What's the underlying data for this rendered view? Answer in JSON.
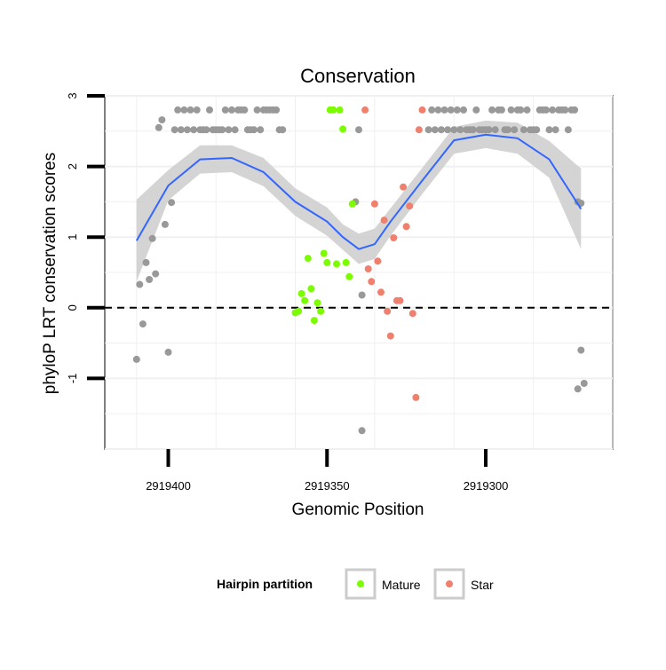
{
  "chart_data": {
    "type": "scatter",
    "title": "Conservation",
    "xlabel": "Genomic Position",
    "ylabel": "phyloP LRT conservation scores",
    "x_reversed": true,
    "xlim": [
      2919260,
      2919420
    ],
    "ylim": [
      -2.0,
      3.0
    ],
    "x_ticks": [
      2919400,
      2919350,
      2919300
    ],
    "x_tick_labels": [
      "2919400",
      "2919350",
      "2919300"
    ],
    "y_ticks": [
      -1,
      0,
      1,
      2,
      3
    ],
    "y_tick_labels": [
      "-1",
      "0",
      "1",
      "2",
      "3"
    ],
    "grid": true,
    "reference_line": {
      "y": 0,
      "style": "dashed"
    },
    "colors": {
      "other": "#999999",
      "mature": "#7cfc00",
      "star": "#f0806e",
      "smooth": "#3366ff",
      "band": "#cccccc"
    },
    "legend": {
      "title": "Hairpin partition",
      "position": "bottom",
      "entries": [
        {
          "label": "Mature",
          "color": "#7cfc00"
        },
        {
          "label": "Star",
          "color": "#f0806e"
        }
      ]
    },
    "series": [
      {
        "key": "other",
        "points": [
          [
            2919410,
            -0.73
          ],
          [
            2919409,
            0.33
          ],
          [
            2919408,
            -0.23
          ],
          [
            2919407,
            0.64
          ],
          [
            2919406,
            0.4
          ],
          [
            2919405,
            0.98
          ],
          [
            2919404,
            0.48
          ],
          [
            2919403,
            2.55
          ],
          [
            2919402,
            2.66
          ],
          [
            2919401,
            1.18
          ],
          [
            2919400,
            -0.63
          ],
          [
            2919399,
            1.49
          ],
          [
            2919398,
            2.52
          ],
          [
            2919397,
            2.8
          ],
          [
            2919396,
            2.52
          ],
          [
            2919395,
            2.8
          ],
          [
            2919394,
            2.52
          ],
          [
            2919393,
            2.8
          ],
          [
            2919392,
            2.52
          ],
          [
            2919391,
            2.8
          ],
          [
            2919390,
            2.52
          ],
          [
            2919389,
            2.52
          ],
          [
            2919388,
            2.52
          ],
          [
            2919387,
            2.8
          ],
          [
            2919386,
            2.52
          ],
          [
            2919385,
            2.52
          ],
          [
            2919384,
            2.52
          ],
          [
            2919383,
            2.52
          ],
          [
            2919382,
            2.8
          ],
          [
            2919381,
            2.52
          ],
          [
            2919380,
            2.8
          ],
          [
            2919379,
            2.52
          ],
          [
            2919378,
            2.8
          ],
          [
            2919377,
            2.8
          ],
          [
            2919376,
            2.8
          ],
          [
            2919375,
            2.52
          ],
          [
            2919374,
            2.52
          ],
          [
            2919373,
            2.52
          ],
          [
            2919372,
            2.8
          ],
          [
            2919371,
            2.52
          ],
          [
            2919370,
            2.8
          ],
          [
            2919369,
            2.8
          ],
          [
            2919368,
            2.8
          ],
          [
            2919367,
            2.8
          ],
          [
            2919366,
            2.8
          ],
          [
            2919365,
            2.52
          ],
          [
            2919364,
            2.52
          ],
          [
            2919341,
            1.5
          ],
          [
            2919340,
            2.52
          ],
          [
            2919339,
            0.18
          ],
          [
            2919339,
            -1.74
          ],
          [
            2919318,
            2.52
          ],
          [
            2919317,
            2.8
          ],
          [
            2919316,
            2.52
          ],
          [
            2919315,
            2.8
          ],
          [
            2919314,
            2.52
          ],
          [
            2919313,
            2.8
          ],
          [
            2919312,
            2.52
          ],
          [
            2919311,
            2.8
          ],
          [
            2919310,
            2.52
          ],
          [
            2919309,
            2.8
          ],
          [
            2919308,
            2.52
          ],
          [
            2919307,
            2.8
          ],
          [
            2919306,
            2.52
          ],
          [
            2919305,
            2.52
          ],
          [
            2919304,
            2.52
          ],
          [
            2919303,
            2.8
          ],
          [
            2919302,
            2.52
          ],
          [
            2919301,
            2.52
          ],
          [
            2919300,
            2.52
          ],
          [
            2919299,
            2.52
          ],
          [
            2919298,
            2.8
          ],
          [
            2919297,
            2.52
          ],
          [
            2919296,
            2.8
          ],
          [
            2919295,
            2.8
          ],
          [
            2919294,
            2.52
          ],
          [
            2919293,
            2.52
          ],
          [
            2919292,
            2.8
          ],
          [
            2919291,
            2.52
          ],
          [
            2919290,
            2.8
          ],
          [
            2919289,
            2.8
          ],
          [
            2919288,
            2.52
          ],
          [
            2919287,
            2.8
          ],
          [
            2919286,
            2.52
          ],
          [
            2919285,
            2.52
          ],
          [
            2919284,
            2.52
          ],
          [
            2919283,
            2.8
          ],
          [
            2919282,
            2.8
          ],
          [
            2919281,
            2.8
          ],
          [
            2919280,
            2.52
          ],
          [
            2919279,
            2.8
          ],
          [
            2919278,
            2.52
          ],
          [
            2919277,
            2.8
          ],
          [
            2919276,
            2.8
          ],
          [
            2919275,
            2.8
          ],
          [
            2919274,
            2.52
          ],
          [
            2919273,
            2.8
          ],
          [
            2919272,
            2.8
          ],
          [
            2919271,
            1.5
          ],
          [
            2919271,
            -1.15
          ],
          [
            2919270,
            1.48
          ],
          [
            2919270,
            -0.6
          ],
          [
            2919269,
            -1.07
          ]
        ]
      },
      {
        "key": "mature",
        "name": "Mature",
        "points": [
          [
            2919360,
            -0.07
          ],
          [
            2919359,
            -0.05
          ],
          [
            2919358,
            0.2
          ],
          [
            2919357,
            0.1
          ],
          [
            2919356,
            0.7
          ],
          [
            2919355,
            0.27
          ],
          [
            2919354,
            -0.18
          ],
          [
            2919353,
            0.07
          ],
          [
            2919352,
            -0.05
          ],
          [
            2919351,
            0.77
          ],
          [
            2919350,
            0.64
          ],
          [
            2919349,
            2.8
          ],
          [
            2919348,
            2.8
          ],
          [
            2919347,
            0.62
          ],
          [
            2919346,
            2.8
          ],
          [
            2919345,
            2.53
          ],
          [
            2919344,
            0.64
          ],
          [
            2919343,
            0.44
          ],
          [
            2919342,
            1.47
          ]
        ]
      },
      {
        "key": "star",
        "name": "Star",
        "points": [
          [
            2919338,
            2.8
          ],
          [
            2919337,
            0.55
          ],
          [
            2919336,
            0.37
          ],
          [
            2919335,
            1.47
          ],
          [
            2919334,
            0.66
          ],
          [
            2919333,
            0.22
          ],
          [
            2919332,
            1.24
          ],
          [
            2919331,
            -0.05
          ],
          [
            2919330,
            -0.4
          ],
          [
            2919329,
            0.99
          ],
          [
            2919328,
            0.1
          ],
          [
            2919327,
            0.1
          ],
          [
            2919326,
            1.71
          ],
          [
            2919325,
            1.15
          ],
          [
            2919324,
            1.44
          ],
          [
            2919323,
            -0.08
          ],
          [
            2919322,
            -1.27
          ],
          [
            2919321,
            2.52
          ],
          [
            2919320,
            2.8
          ]
        ]
      }
    ],
    "smooth": {
      "x": [
        2919410,
        2919400,
        2919390,
        2919380,
        2919370,
        2919360,
        2919350,
        2919345,
        2919340,
        2919335,
        2919330,
        2919320,
        2919310,
        2919300,
        2919290,
        2919280,
        2919270
      ],
      "y": [
        0.95,
        1.73,
        2.1,
        2.12,
        1.92,
        1.5,
        1.22,
        1.0,
        0.83,
        0.9,
        1.22,
        1.8,
        2.37,
        2.45,
        2.4,
        2.1,
        1.4
      ],
      "upper": [
        1.53,
        1.95,
        2.3,
        2.3,
        2.12,
        1.69,
        1.42,
        1.18,
        1.05,
        1.12,
        1.41,
        1.98,
        2.56,
        2.65,
        2.62,
        2.36,
        1.97
      ],
      "lower": [
        0.37,
        1.52,
        1.9,
        1.92,
        1.72,
        1.3,
        1.02,
        0.82,
        0.62,
        0.69,
        1.02,
        1.61,
        2.18,
        2.26,
        2.18,
        1.84,
        0.83
      ]
    }
  }
}
